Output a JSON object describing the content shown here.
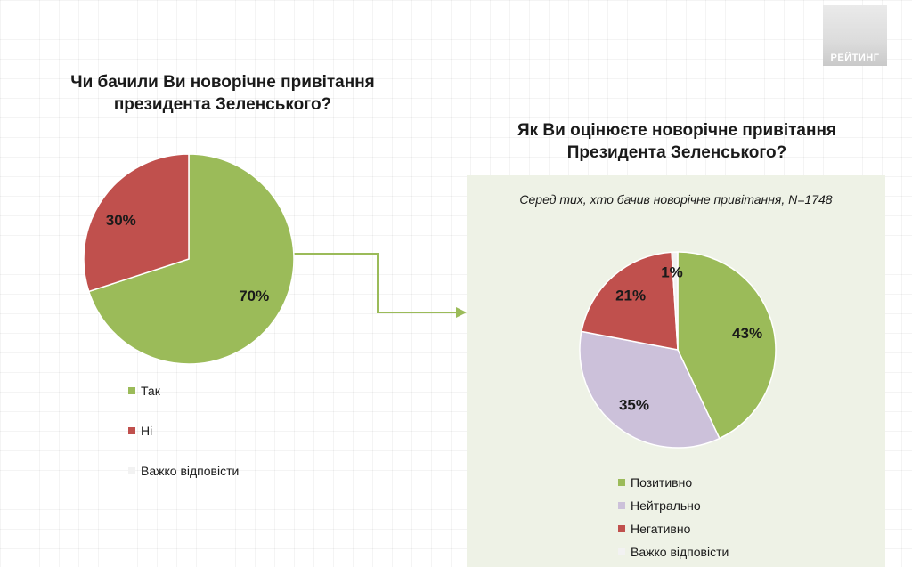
{
  "logo": {
    "text": "РЕЙТИНГ"
  },
  "chart_data": [
    {
      "type": "pie",
      "title": "Чи бачили Ви новорічне привітання президента Зеленського?",
      "slices": [
        {
          "label": "Так",
          "value": 70,
          "value_label": "70%",
          "color": "#9bbb59"
        },
        {
          "label": "Ні",
          "value": 30,
          "value_label": "30%",
          "color": "#c0504d"
        },
        {
          "label": "Важко відповісти",
          "value": 0,
          "value_label": "",
          "color": "#f2f2f2"
        }
      ],
      "legend_position": "bottom"
    },
    {
      "type": "pie",
      "title": "Як Ви оцінюєте новорічне привітання Президента Зеленського?",
      "subtitle": "Серед тих, хто бачив новорічне привітання, N=1748",
      "slices": [
        {
          "label": "Позитивно",
          "value": 43,
          "value_label": "43%",
          "color": "#9bbb59"
        },
        {
          "label": "Нейтрально",
          "value": 35,
          "value_label": "35%",
          "color": "#ccc1da"
        },
        {
          "label": "Негативно",
          "value": 21,
          "value_label": "21%",
          "color": "#c0504d"
        },
        {
          "label": "Важко відповісти",
          "value": 1,
          "value_label": "1%",
          "color": "#f2f2f2"
        }
      ],
      "legend_position": "bottom"
    }
  ]
}
